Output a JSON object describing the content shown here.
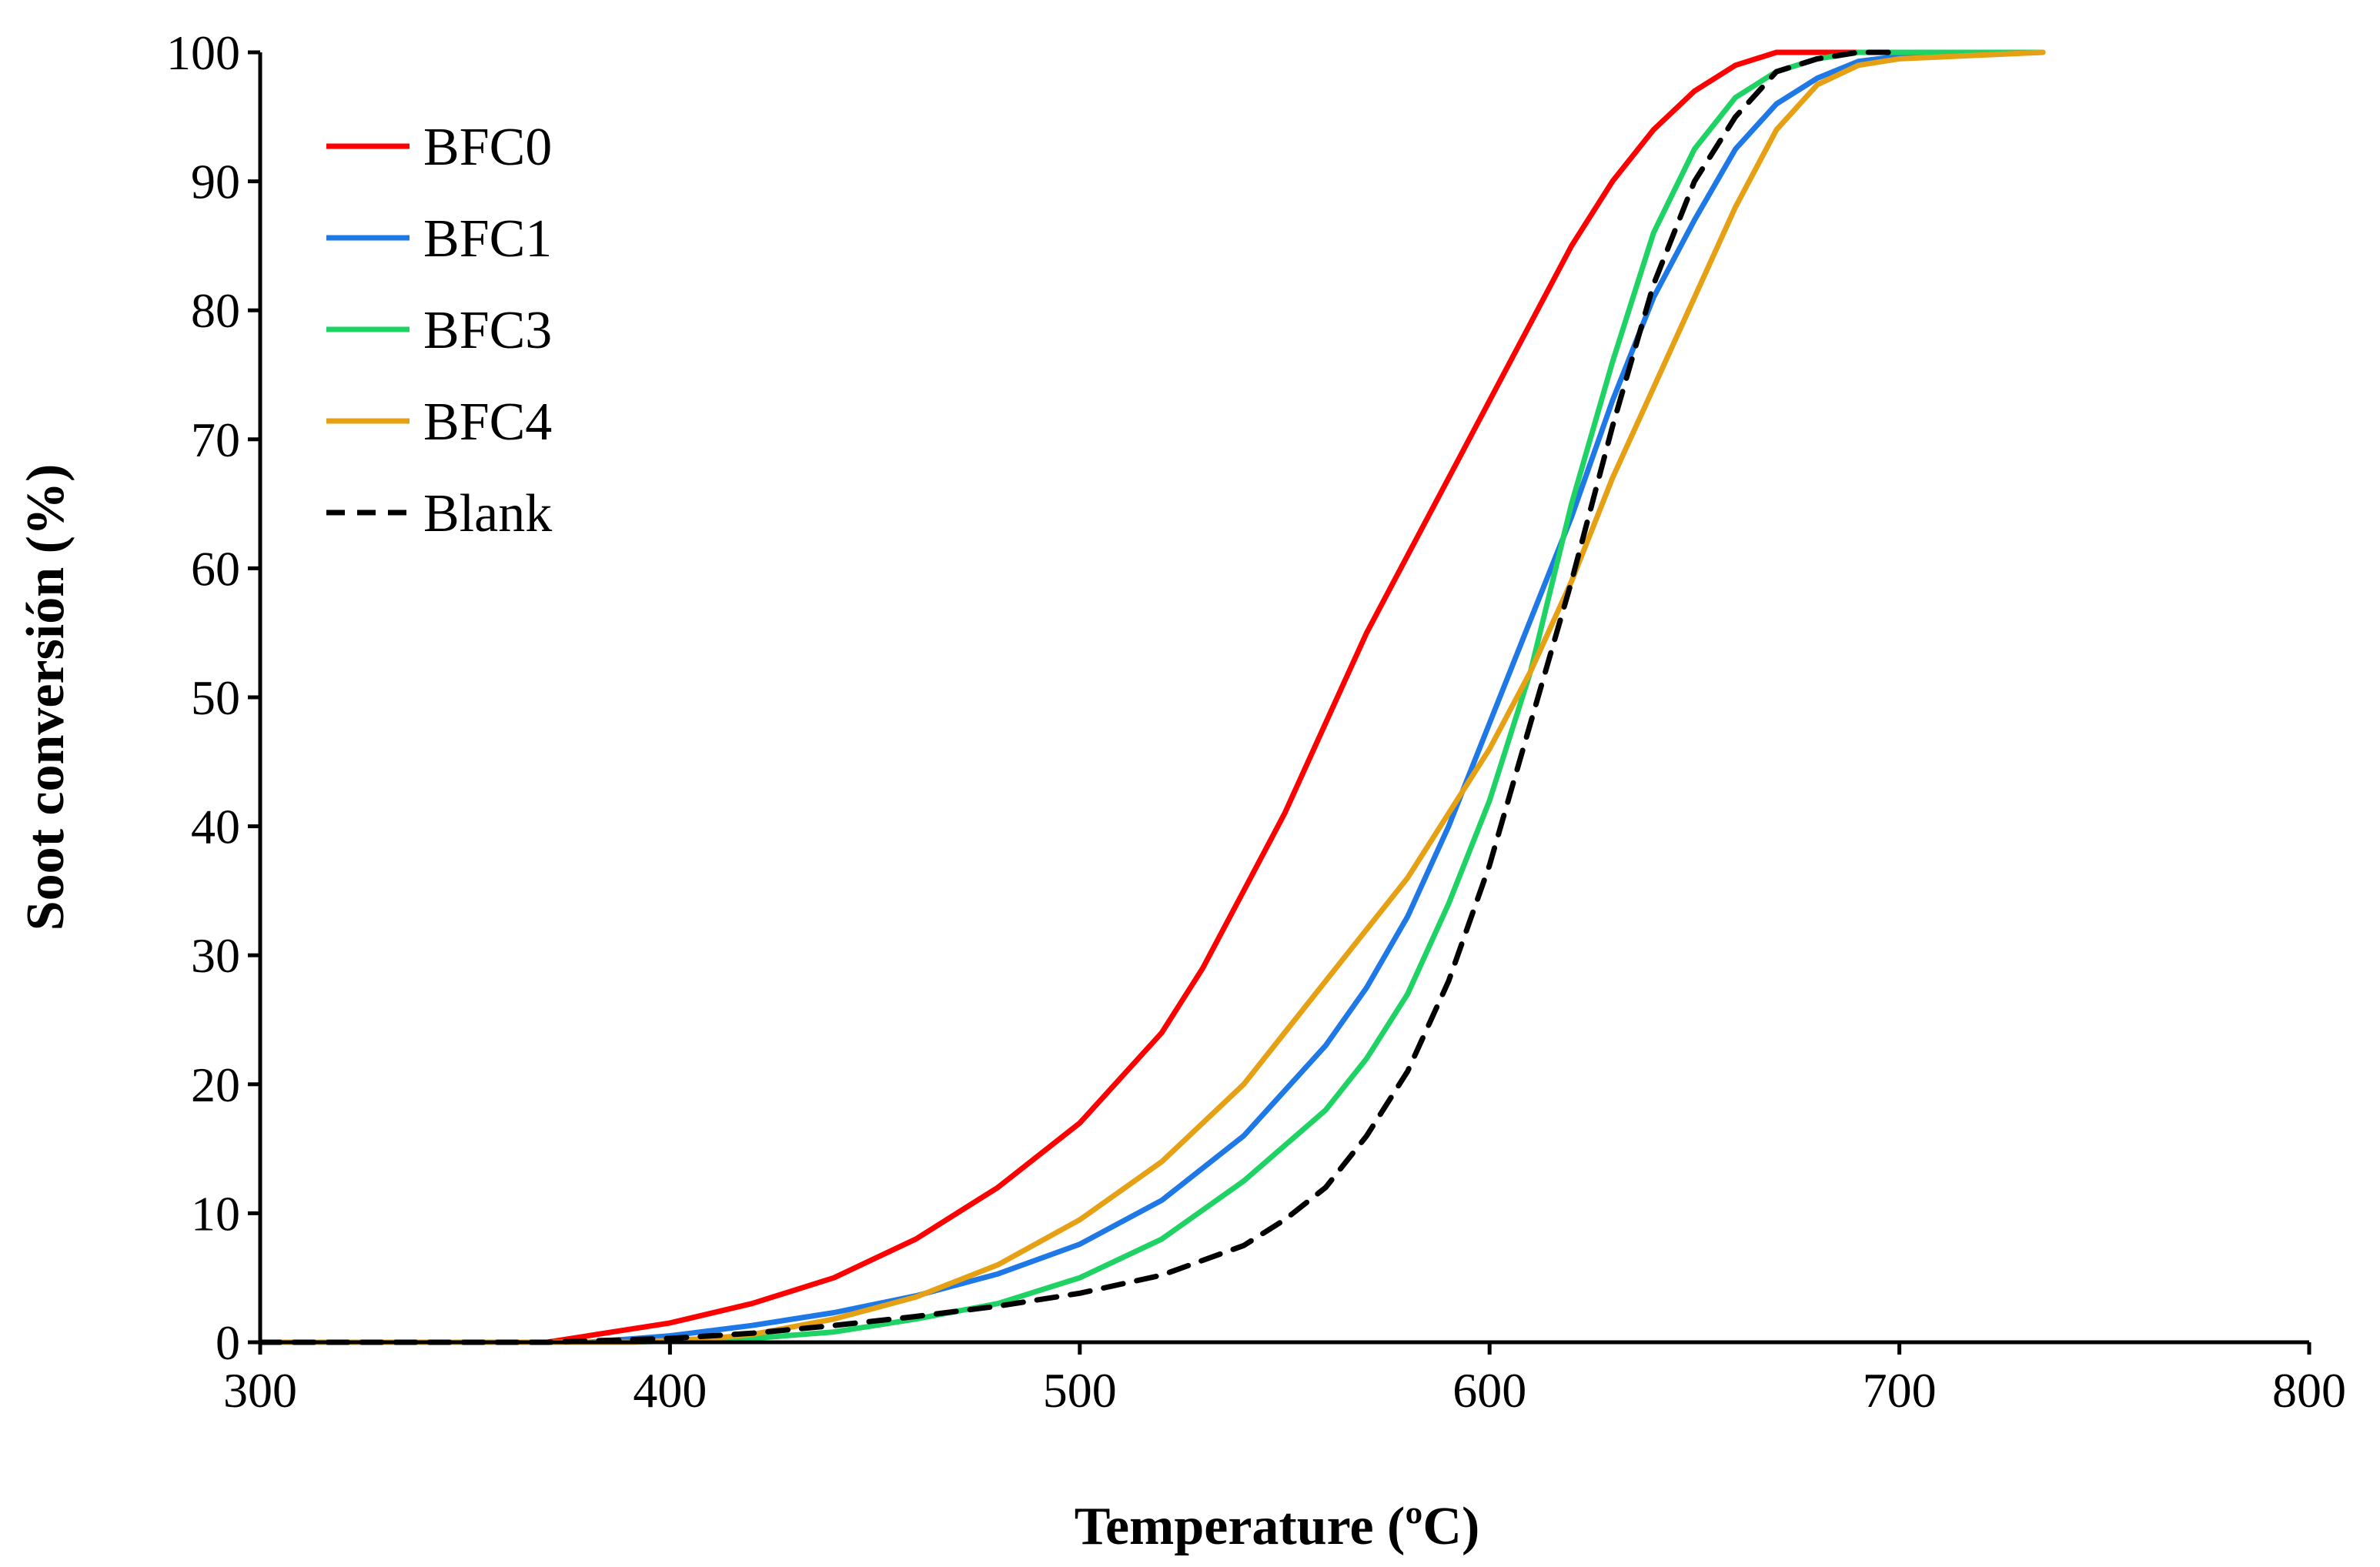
{
  "chart_data": {
    "type": "line",
    "title": "",
    "xlabel": "Temperature (ºC)",
    "ylabel": "Soot conversión (%)",
    "xlim": [
      300,
      800
    ],
    "ylim": [
      0,
      100
    ],
    "xticks": [
      300,
      400,
      500,
      600,
      700,
      800
    ],
    "yticks": [
      0,
      10,
      20,
      30,
      40,
      50,
      60,
      70,
      80,
      90,
      100
    ],
    "grid": false,
    "legend_position": "top-left",
    "series": [
      {
        "name": "BFC0",
        "color": "#ff0000",
        "dash": "solid",
        "x": [
          300,
          370,
          380,
          400,
          420,
          440,
          460,
          480,
          500,
          520,
          530,
          540,
          550,
          560,
          570,
          580,
          590,
          600,
          610,
          620,
          630,
          640,
          650,
          660,
          670,
          680,
          700,
          735
        ],
        "y": [
          0,
          0,
          0.5,
          1.5,
          3,
          5,
          8,
          12,
          17,
          24,
          29,
          35,
          41,
          48,
          55,
          61,
          67,
          73,
          79,
          85,
          90,
          94,
          97,
          99,
          100,
          100,
          100,
          100
        ]
      },
      {
        "name": "BFC1",
        "color": "#1e78e6",
        "dash": "solid",
        "x": [
          300,
          380,
          400,
          420,
          440,
          460,
          480,
          500,
          520,
          540,
          560,
          570,
          580,
          590,
          600,
          610,
          620,
          630,
          640,
          650,
          660,
          670,
          680,
          690,
          700,
          735
        ],
        "y": [
          0,
          0,
          0.5,
          1.3,
          2.3,
          3.6,
          5.3,
          7.6,
          11,
          16,
          23,
          27.5,
          33,
          40,
          48,
          56,
          64,
          73,
          81,
          87,
          92.5,
          96,
          98,
          99.3,
          99.7,
          100
        ]
      },
      {
        "name": "BFC3",
        "color": "#1ed264",
        "dash": "solid",
        "x": [
          300,
          390,
          420,
          440,
          460,
          480,
          500,
          520,
          540,
          560,
          570,
          580,
          590,
          600,
          610,
          620,
          630,
          640,
          650,
          660,
          670,
          680,
          690,
          700,
          735
        ],
        "y": [
          0,
          0,
          0.3,
          0.8,
          1.8,
          3,
          5,
          8,
          12.5,
          18,
          22,
          27,
          34,
          42,
          52,
          65,
          76,
          86,
          92.5,
          96.5,
          98.5,
          99.5,
          100,
          100,
          100
        ]
      },
      {
        "name": "BFC4",
        "color": "#e6a014",
        "dash": "solid",
        "x": [
          300,
          390,
          410,
          420,
          440,
          460,
          480,
          500,
          520,
          540,
          560,
          580,
          590,
          600,
          610,
          620,
          630,
          640,
          650,
          660,
          670,
          680,
          690,
          700,
          735
        ],
        "y": [
          0,
          0,
          0.3,
          0.6,
          1.8,
          3.5,
          6,
          9.5,
          14,
          20,
          28,
          36,
          41,
          46,
          52,
          59,
          67,
          74,
          81,
          88,
          94,
          97.5,
          99,
          99.5,
          100
        ]
      },
      {
        "name": "Blank",
        "color": "#000000",
        "dash": "dashed",
        "x": [
          300,
          370,
          400,
          420,
          440,
          460,
          480,
          500,
          520,
          540,
          550,
          560,
          570,
          580,
          590,
          600,
          610,
          620,
          630,
          640,
          650,
          660,
          670,
          680,
          690,
          700
        ],
        "y": [
          0,
          0,
          0.3,
          0.7,
          1.3,
          2,
          2.8,
          3.8,
          5.2,
          7.5,
          9.5,
          12,
          16,
          21,
          28,
          37,
          48,
          59,
          71,
          82,
          90,
          95,
          98.5,
          99.5,
          100,
          100
        ]
      }
    ]
  }
}
